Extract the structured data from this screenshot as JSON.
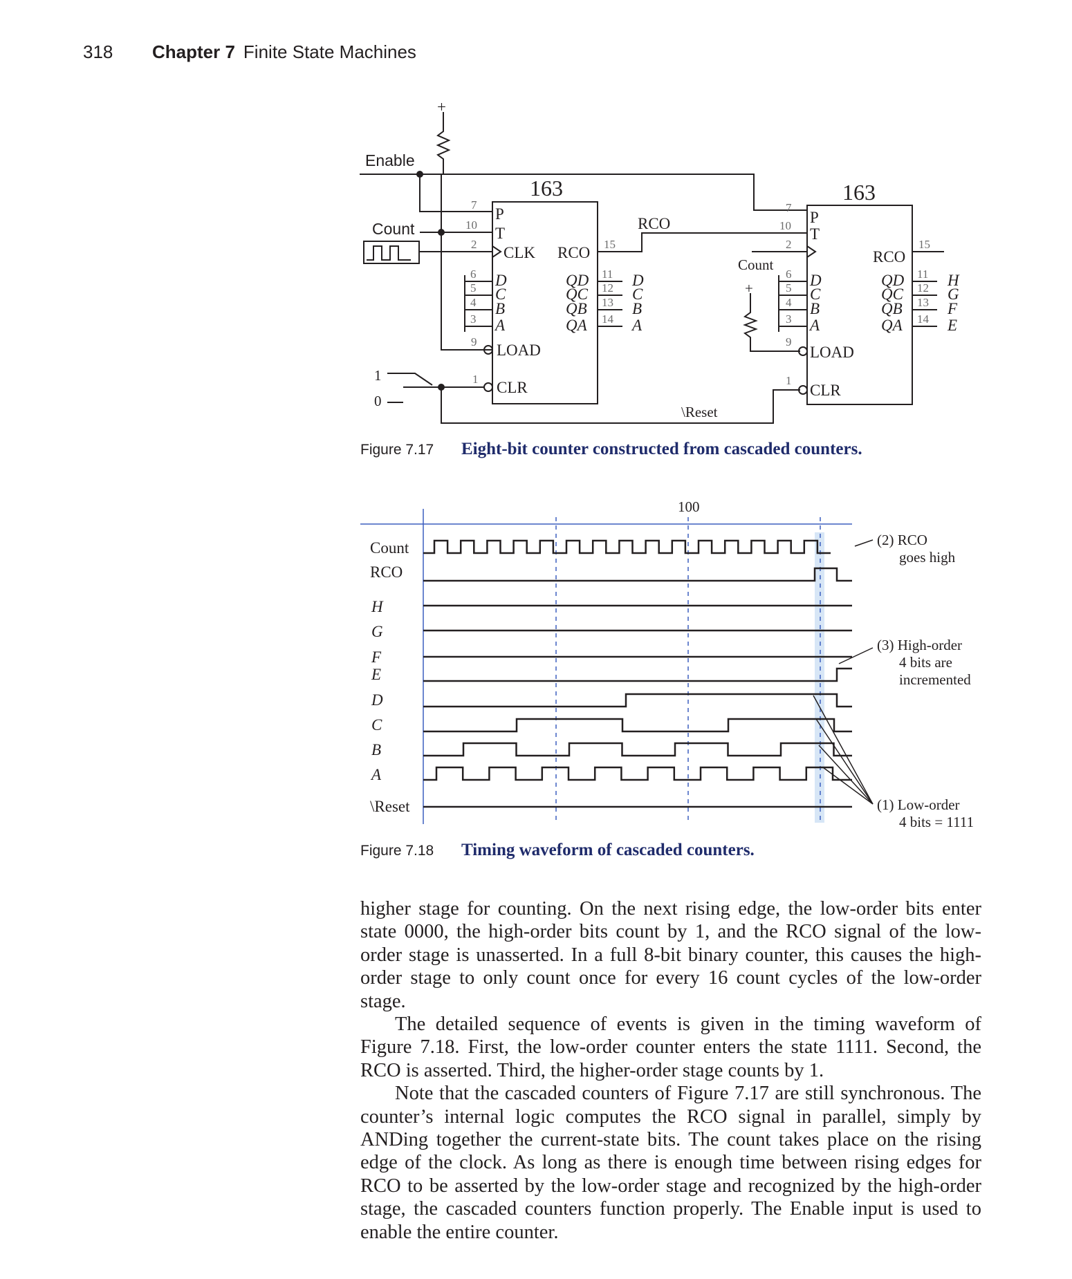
{
  "header": {
    "page_number": "318",
    "chapter": "Chapter 7",
    "chapter_title": "Finite State Machines"
  },
  "figure1": {
    "number": "Figure 7.17",
    "title": "Eight-bit counter constructed from cascaded counters.",
    "labels": {
      "enable": "Enable",
      "count": "Count",
      "chip": "163",
      "rco": "RCO",
      "reset": "\\Reset",
      "one": "1",
      "zero": "0",
      "plus": "+",
      "p": "P",
      "t": "T",
      "clk": "CLK",
      "load": "LOAD",
      "clr": "CLR",
      "d": "D",
      "c": "C",
      "b": "B",
      "a": "A",
      "qd": "QD",
      "qc": "QC",
      "qb": "QB",
      "qa": "QA",
      "h": "H",
      "g": "G",
      "f": "F",
      "e": "E",
      "pins": [
        "7",
        "10",
        "2",
        "15",
        "6",
        "5",
        "4",
        "3",
        "9",
        "1",
        "11",
        "12",
        "13",
        "14"
      ]
    }
  },
  "figure2": {
    "number": "Figure 7.18",
    "title": "Timing waveform of cascaded counters.",
    "marker": "100",
    "signals": [
      "Count",
      "RCO",
      "H",
      "G",
      "F",
      "E",
      "D",
      "C",
      "B",
      "A",
      "\\Reset"
    ],
    "annotations": {
      "a2_line1": "(2) RCO",
      "a2_line2": "goes high",
      "a3_line1": "(3) High-order",
      "a3_line2": "4 bits are",
      "a3_line3": "incremented",
      "a1_line1": "(1) Low-order",
      "a1_line2": "4 bits = 1111"
    }
  },
  "body": {
    "p1": "higher stage for counting. On the next rising edge, the low-order bits enter state 0000, the high-order bits count by 1, and the RCO signal of the low-order stage is unasserted. In a full 8-bit binary counter, this causes the high-order stage to only count once for every 16 count cycles of the low-order stage.",
    "p2": "The detailed sequence of events is given in the timing waveform of Figure 7.18. First, the low-order counter enters the state 1111. Second, the RCO is asserted. Third, the higher-order stage counts by 1.",
    "p3": "Note that the cascaded counters of Figure 7.17 are still synchronous. The counter’s internal logic computes the RCO signal in parallel, simply by ANDing together the current-state bits. The count takes place on the rising edge of the clock. As long as there is enough time between rising edges for RCO to be asserted by the low-order stage and recognized by the high-order stage, the cascaded counters function properly.",
    "p3_tail": "The Enable input is used to enable the entire counter."
  }
}
